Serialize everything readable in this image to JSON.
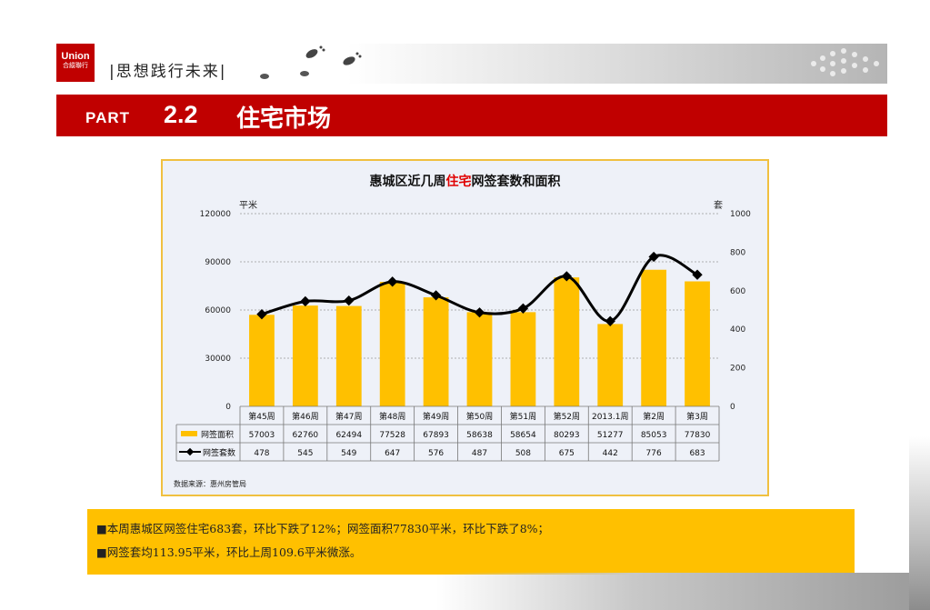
{
  "logo": {
    "line1": "Union",
    "line2": "合縱聯行"
  },
  "slogan": "|思想践行未来|",
  "header": {
    "part_label": "PART",
    "section_number": "2.2",
    "section_title": "住宅市场"
  },
  "chart": {
    "title_pre": "惠城区近几周",
    "title_highlight": "住宅",
    "title_post": "网签套数和面积",
    "left_unit": "平米",
    "right_unit": "套",
    "source": "数据来源：惠州房管局",
    "row1_label": "网签面积",
    "row2_label": "网签套数"
  },
  "chart_data": {
    "type": "bar",
    "categories": [
      "第45周",
      "第46周",
      "第47周",
      "第48周",
      "第49周",
      "第50周",
      "第51周",
      "第52周",
      "2013.1周",
      "第2周",
      "第3周"
    ],
    "series": [
      {
        "name": "网签面积",
        "type": "bar",
        "axis": "left",
        "values": [
          57003,
          62760,
          62494,
          77528,
          67893,
          58638,
          58654,
          80293,
          51277,
          85053,
          77830
        ]
      },
      {
        "name": "网签套数",
        "type": "line",
        "axis": "right",
        "values": [
          478,
          545,
          549,
          647,
          576,
          487,
          508,
          675,
          442,
          776,
          683
        ]
      }
    ],
    "ylabel": "平米",
    "y2label": "套",
    "ylim": [
      0,
      120000
    ],
    "y2lim": [
      0,
      1000
    ],
    "yticks": [
      "0",
      "30000",
      "60000",
      "90000",
      "120000"
    ],
    "y2ticks": [
      "0",
      "200",
      "400",
      "600",
      "800",
      "1000"
    ],
    "grid": true,
    "colors": {
      "bar": "#ffc000",
      "line": "#000000"
    },
    "legend": "data-table"
  },
  "summary": {
    "line1": "■本周惠城区网签住宅683套，环比下跌了12%；网签面积77830平米，环比下跌了8%；",
    "line2": "■网签套均113.95平米，环比上周109.6平米微涨。"
  }
}
